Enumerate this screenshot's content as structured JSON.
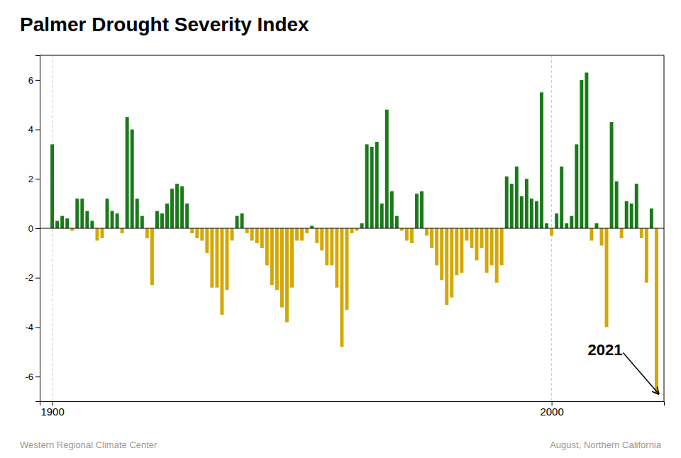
{
  "chart_data": {
    "type": "bar",
    "title": "Palmer Drought Severity Index",
    "source": "Western Regional Climate Center",
    "subtitle": "August, Northern California",
    "annotations": [
      {
        "text": "2021",
        "x": 2021,
        "y": -6.7
      }
    ],
    "x": [
      1900,
      1901,
      1902,
      1903,
      1904,
      1905,
      1906,
      1907,
      1908,
      1909,
      1910,
      1911,
      1912,
      1913,
      1914,
      1915,
      1916,
      1917,
      1918,
      1919,
      1920,
      1921,
      1922,
      1923,
      1924,
      1925,
      1926,
      1927,
      1928,
      1929,
      1930,
      1931,
      1932,
      1933,
      1934,
      1935,
      1936,
      1937,
      1938,
      1939,
      1940,
      1941,
      1942,
      1943,
      1944,
      1945,
      1946,
      1947,
      1948,
      1949,
      1950,
      1951,
      1952,
      1953,
      1954,
      1955,
      1956,
      1957,
      1958,
      1959,
      1960,
      1961,
      1962,
      1963,
      1964,
      1965,
      1966,
      1967,
      1968,
      1969,
      1970,
      1971,
      1972,
      1973,
      1974,
      1975,
      1976,
      1977,
      1978,
      1979,
      1980,
      1981,
      1982,
      1983,
      1984,
      1985,
      1986,
      1987,
      1988,
      1989,
      1990,
      1991,
      1992,
      1993,
      1994,
      1995,
      1996,
      1997,
      1998,
      1999,
      2000,
      2001,
      2002,
      2003,
      2004,
      2005,
      2006,
      2007,
      2008,
      2009,
      2010,
      2011,
      2012,
      2013,
      2014,
      2015,
      2016,
      2017,
      2018,
      2019,
      2020,
      2021
    ],
    "values": [
      3.4,
      0.3,
      0.5,
      0.4,
      -0.1,
      1.2,
      1.2,
      0.7,
      0.3,
      -0.5,
      -0.4,
      1.2,
      0.7,
      0.6,
      -0.2,
      4.5,
      4.0,
      1.2,
      0.5,
      -0.4,
      -2.3,
      0.7,
      0.6,
      1.0,
      1.6,
      1.8,
      1.7,
      1.0,
      -0.2,
      -0.4,
      -0.5,
      -1.0,
      -2.4,
      -2.4,
      -3.5,
      -2.5,
      -0.5,
      0.5,
      0.6,
      -0.2,
      -0.5,
      -0.6,
      -0.8,
      -1.5,
      -2.3,
      -2.5,
      -3.2,
      -3.8,
      -2.4,
      -0.5,
      -0.5,
      -0.2,
      0.1,
      -0.6,
      -0.9,
      -1.5,
      -1.5,
      -2.4,
      -4.8,
      -3.3,
      -0.2,
      -0.1,
      0.2,
      3.4,
      3.3,
      3.5,
      1.0,
      4.8,
      1.5,
      0.5,
      -0.1,
      -0.5,
      -0.6,
      1.4,
      1.5,
      -0.3,
      -0.8,
      -1.5,
      -2.1,
      -3.1,
      -2.8,
      -1.9,
      -1.8,
      -0.5,
      -0.8,
      -1.3,
      -0.8,
      -1.8,
      -1.5,
      -2.2,
      -1.5,
      2.1,
      1.8,
      2.5,
      1.3,
      2.0,
      1.2,
      1.1,
      5.5,
      0.2,
      -0.3,
      0.6,
      2.5,
      0.2,
      0.5,
      3.4,
      6.0,
      6.3,
      -0.5,
      0.2,
      -0.7,
      -4.0,
      4.3,
      1.9,
      -0.4,
      1.1,
      1.0,
      1.8,
      -0.4,
      -2.2,
      0.8,
      -6.7
    ],
    "colors": [
      "#1a7a1a",
      "#1a7a1a",
      "#1a7a1a",
      "#1a7a1a",
      "#d4a800",
      "#1a7a1a",
      "#1a7a1a",
      "#1a7a1a",
      "#1a7a1a",
      "#d4a800",
      "#d4a800",
      "#1a7a1a",
      "#1a7a1a",
      "#1a7a1a",
      "#d4a800",
      "#1a7a1a",
      "#1a7a1a",
      "#1a7a1a",
      "#1a7a1a",
      "#d4a800",
      "#d4a800",
      "#1a7a1a",
      "#1a7a1a",
      "#1a7a1a",
      "#1a7a1a",
      "#1a7a1a",
      "#1a7a1a",
      "#1a7a1a",
      "#d4a800",
      "#d4a800",
      "#d4a800",
      "#d4a800",
      "#d4a800",
      "#d4a800",
      "#d4a800",
      "#d4a800",
      "#d4a800",
      "#1a7a1a",
      "#1a7a1a",
      "#d4a800",
      "#d4a800",
      "#d4a800",
      "#d4a800",
      "#d4a800",
      "#d4a800",
      "#d4a800",
      "#d4a800",
      "#d4a800",
      "#d4a800",
      "#d4a800",
      "#d4a800",
      "#d4a800",
      "#1a7a1a",
      "#d4a800",
      "#d4a800",
      "#d4a800",
      "#d4a800",
      "#d4a800",
      "#d4a800",
      "#d4a800",
      "#d4a800",
      "#d4a800",
      "#1a7a1a",
      "#1a7a1a",
      "#1a7a1a",
      "#1a7a1a",
      "#1a7a1a",
      "#1a7a1a",
      "#1a7a1a",
      "#1a7a1a",
      "#d4a800",
      "#d4a800",
      "#d4a800",
      "#1a7a1a",
      "#1a7a1a",
      "#d4a800",
      "#d4a800",
      "#d4a800",
      "#d4a800",
      "#d4a800",
      "#d4a800",
      "#d4a800",
      "#d4a800",
      "#d4a800",
      "#d4a800",
      "#d4a800",
      "#d4a800",
      "#d4a800",
      "#d4a800",
      "#d4a800",
      "#d4a800",
      "#1a7a1a",
      "#1a7a1a",
      "#1a7a1a",
      "#1a7a1a",
      "#1a7a1a",
      "#1a7a1a",
      "#1a7a1a",
      "#1a7a1a",
      "#1a7a1a",
      "#d4a800",
      "#1a7a1a",
      "#1a7a1a",
      "#1a7a1a",
      "#1a7a1a",
      "#1a7a1a",
      "#1a7a1a",
      "#1a7a1a",
      "#d4a800",
      "#1a7a1a",
      "#d4a800",
      "#d4a800",
      "#1a7a1a",
      "#1a7a1a",
      "#d4a800",
      "#1a7a1a",
      "#1a7a1a",
      "#1a7a1a",
      "#d4a800",
      "#d4a800",
      "#1a7a1a",
      "#d4a800"
    ],
    "xlim": [
      1897.5,
      2022.5
    ],
    "xticks": [
      1900,
      2000
    ],
    "ylim": [
      -7.0,
      7.0
    ],
    "yticks": [
      -6,
      -4,
      -2,
      0,
      2,
      4,
      6
    ],
    "grid": true
  }
}
